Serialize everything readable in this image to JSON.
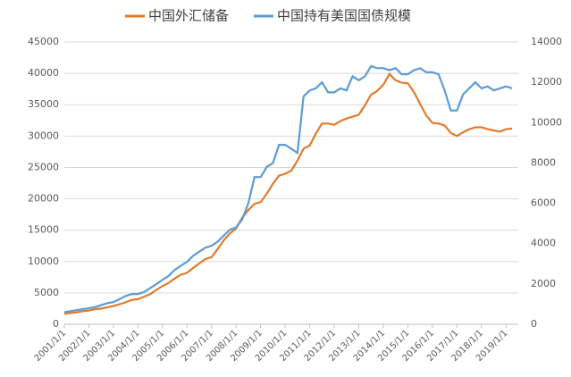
{
  "chart_data": {
    "type": "line",
    "x": [
      "2001/1/1",
      "2001/4/1",
      "2001/7/1",
      "2001/10/1",
      "2002/1/1",
      "2002/4/1",
      "2002/7/1",
      "2002/10/1",
      "2003/1/1",
      "2003/4/1",
      "2003/7/1",
      "2003/10/1",
      "2004/1/1",
      "2004/4/1",
      "2004/7/1",
      "2004/10/1",
      "2005/1/1",
      "2005/4/1",
      "2005/7/1",
      "2005/10/1",
      "2006/1/1",
      "2006/4/1",
      "2006/7/1",
      "2006/10/1",
      "2007/1/1",
      "2007/4/1",
      "2007/7/1",
      "2007/10/1",
      "2008/1/1",
      "2008/4/1",
      "2008/7/1",
      "2008/10/1",
      "2009/1/1",
      "2009/4/1",
      "2009/7/1",
      "2009/10/1",
      "2010/1/1",
      "2010/4/1",
      "2010/7/1",
      "2010/10/1",
      "2011/1/1",
      "2011/4/1",
      "2011/7/1",
      "2011/10/1",
      "2012/1/1",
      "2012/4/1",
      "2012/7/1",
      "2012/10/1",
      "2013/1/1",
      "2013/4/1",
      "2013/7/1",
      "2013/10/1",
      "2014/1/1",
      "2014/4/1",
      "2014/7/1",
      "2014/10/1",
      "2015/1/1",
      "2015/4/1",
      "2015/7/1",
      "2015/10/1",
      "2016/1/1",
      "2016/4/1",
      "2016/7/1",
      "2016/10/1",
      "2017/1/1",
      "2017/4/1",
      "2017/7/1",
      "2017/10/1",
      "2018/1/1",
      "2018/4/1",
      "2018/7/1",
      "2018/10/1",
      "2019/1/1",
      "2019/4/1"
    ],
    "xlim": [
      "2001/1/1",
      "2019/7/1"
    ],
    "xticks": [
      "2001/1/1",
      "2002/1/1",
      "2003/1/1",
      "2004/1/1",
      "2005/1/1",
      "2006/1/1",
      "2007/1/1",
      "2008/1/1",
      "2009/1/1",
      "2010/1/1",
      "2011/1/1",
      "2012/1/1",
      "2013/1/1",
      "2014/1/1",
      "2015/1/1",
      "2016/1/1",
      "2017/1/1",
      "2018/1/1",
      "2019/1/1"
    ],
    "ylim": [
      0,
      45000
    ],
    "yticks": [
      0,
      5000,
      10000,
      15000,
      20000,
      25000,
      30000,
      35000,
      40000,
      45000
    ],
    "y2lim": [
      0,
      14000
    ],
    "y2ticks": [
      0,
      2000,
      4000,
      6000,
      8000,
      10000,
      12000,
      14000
    ],
    "grid": true,
    "legend": "top",
    "series": [
      {
        "name": "中国外汇储备",
        "color": "#e07b2c",
        "axis": "y",
        "values": [
          1700,
          1800,
          1900,
          2100,
          2200,
          2400,
          2500,
          2700,
          2900,
          3200,
          3500,
          3900,
          4000,
          4400,
          4800,
          5500,
          6100,
          6600,
          7300,
          7900,
          8200,
          9000,
          9700,
          10400,
          10700,
          12000,
          13400,
          14500,
          15300,
          17000,
          18200,
          19200,
          19500,
          20800,
          22400,
          23700,
          24000,
          24500,
          26100,
          28000,
          28500,
          30400,
          32000,
          32000,
          31800,
          32400,
          32800,
          33100,
          33400,
          34900,
          36600,
          37200,
          38200,
          39900,
          38900,
          38500,
          38400,
          37000,
          35100,
          33300,
          32100,
          32000,
          31700,
          30500,
          30000,
          30600,
          31100,
          31400,
          31400,
          31100,
          30900,
          30700,
          31100,
          31200
        ]
      },
      {
        "name": "中国持有美国国债规模",
        "color": "#5b9bd5",
        "axis": "y2",
        "values": [
          600,
          650,
          700,
          750,
          800,
          850,
          950,
          1050,
          1100,
          1250,
          1400,
          1500,
          1500,
          1600,
          1800,
          2000,
          2200,
          2400,
          2700,
          2900,
          3100,
          3400,
          3600,
          3800,
          3900,
          4100,
          4400,
          4700,
          4800,
          5200,
          6000,
          7300,
          7300,
          7800,
          8000,
          8900,
          8900,
          8700,
          8500,
          11300,
          11600,
          11700,
          12000,
          11500,
          11500,
          11700,
          11600,
          12300,
          12100,
          12300,
          12800,
          12700,
          12700,
          12600,
          12700,
          12400,
          12400,
          12600,
          12700,
          12500,
          12500,
          12400,
          11600,
          10600,
          10600,
          11400,
          11700,
          12000,
          11700,
          11800,
          11600,
          11700,
          11800,
          11700
        ]
      }
    ]
  }
}
